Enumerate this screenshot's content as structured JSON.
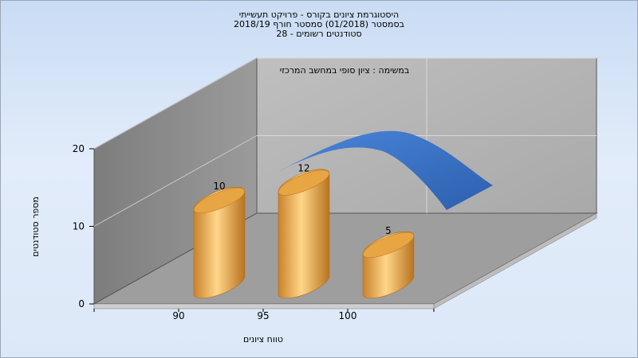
{
  "chart_data": {
    "type": "bar",
    "title_lines": [
      "היסטוגרמת ציונים בקורס - פרויקט תעשייתי",
      "בסמסטר  (01/2018)  סמסטר חורף 2018/19",
      "סטודנטים רשומים - 28"
    ],
    "subtitle": "במשימה : ציון סופי במחשב המרכזי",
    "xlabel": "טווח ציונים",
    "ylabel": "מספר סטודנטים",
    "categories": [
      "90",
      "95",
      "100"
    ],
    "values": [
      10,
      12,
      5
    ],
    "data_labels": [
      "10",
      "12",
      "5"
    ],
    "yticks": [
      "0",
      "10",
      "20"
    ],
    "ylim": [
      0,
      20
    ],
    "grid": true,
    "legend": "none",
    "colors": {
      "bar": "#e6a444",
      "curve": "#3a74c8"
    }
  }
}
